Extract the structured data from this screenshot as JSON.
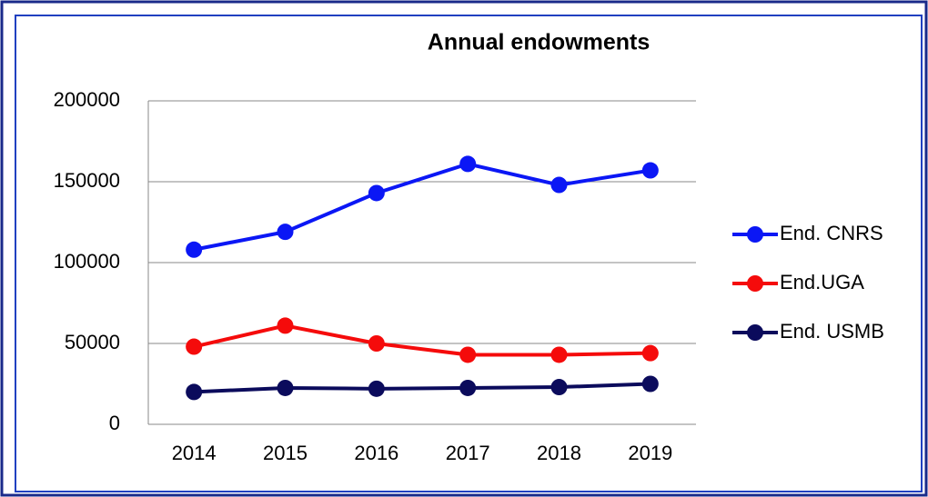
{
  "chart_data": {
    "type": "line",
    "title": "Annual endowments",
    "categories": [
      "2014",
      "2015",
      "2016",
      "2017",
      "2018",
      "2019"
    ],
    "series": [
      {
        "name": "End. CNRS",
        "color": "#0b17f5",
        "values": [
          108000,
          119000,
          143000,
          161000,
          148000,
          157000
        ]
      },
      {
        "name": "End.UGA",
        "color": "#f50b0b",
        "values": [
          48000,
          61000,
          50000,
          43000,
          43000,
          44000
        ]
      },
      {
        "name": "End. USMB",
        "color": "#0b0b5c",
        "values": [
          20000,
          22500,
          22000,
          22500,
          23000,
          25000
        ]
      }
    ],
    "ylim": [
      0,
      200000
    ],
    "yticks": [
      0,
      50000,
      100000,
      150000,
      200000
    ],
    "grid": true,
    "legend": "right"
  }
}
